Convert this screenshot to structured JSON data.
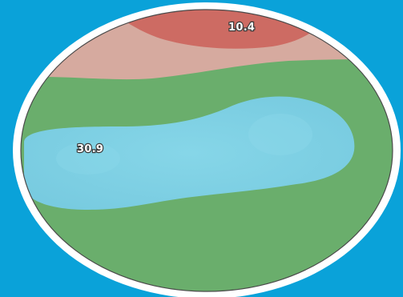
{
  "background_color": "#0aa2d9",
  "frame_color": "#ffffff",
  "zones": [
    {
      "name": "top-red-zone",
      "color": "#cd6b63"
    },
    {
      "name": "top-pink-zone",
      "color": "#d6aa9f"
    },
    {
      "name": "green-zone",
      "color": "#6aae6c"
    },
    {
      "name": "blue-zone",
      "color": "#7ccfe0"
    }
  ],
  "labels": {
    "top_value": "10.4",
    "left_value": "30.9"
  }
}
